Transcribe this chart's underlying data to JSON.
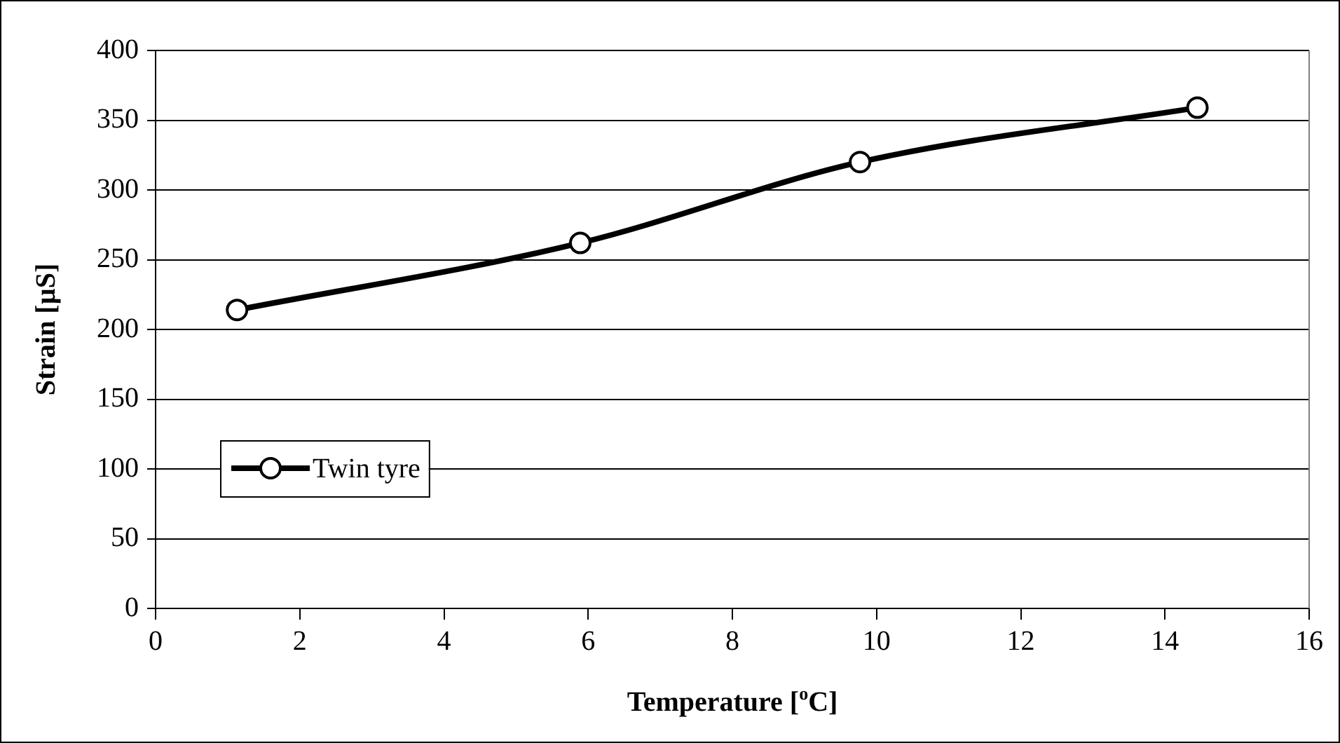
{
  "chart_data": {
    "type": "line",
    "xlabel": "Temperature [$^{o}$C]",
    "ylabel": "Strain [µS]",
    "x": [
      1.13,
      5.89,
      9.77,
      14.45
    ],
    "series": [
      {
        "name": "Twin tyre",
        "color": "#000000",
        "values": [
          214,
          262,
          320,
          359
        ]
      }
    ],
    "xlim": [
      0,
      16
    ],
    "xticks": [
      0,
      2,
      4,
      6,
      8,
      10,
      12,
      14,
      16
    ],
    "ylim": [
      0,
      400
    ],
    "yticks": [
      0,
      50,
      100,
      150,
      200,
      250,
      300,
      350,
      400
    ],
    "grid": "y",
    "legend": "left",
    "marker": "circle",
    "line_style": "solid"
  }
}
